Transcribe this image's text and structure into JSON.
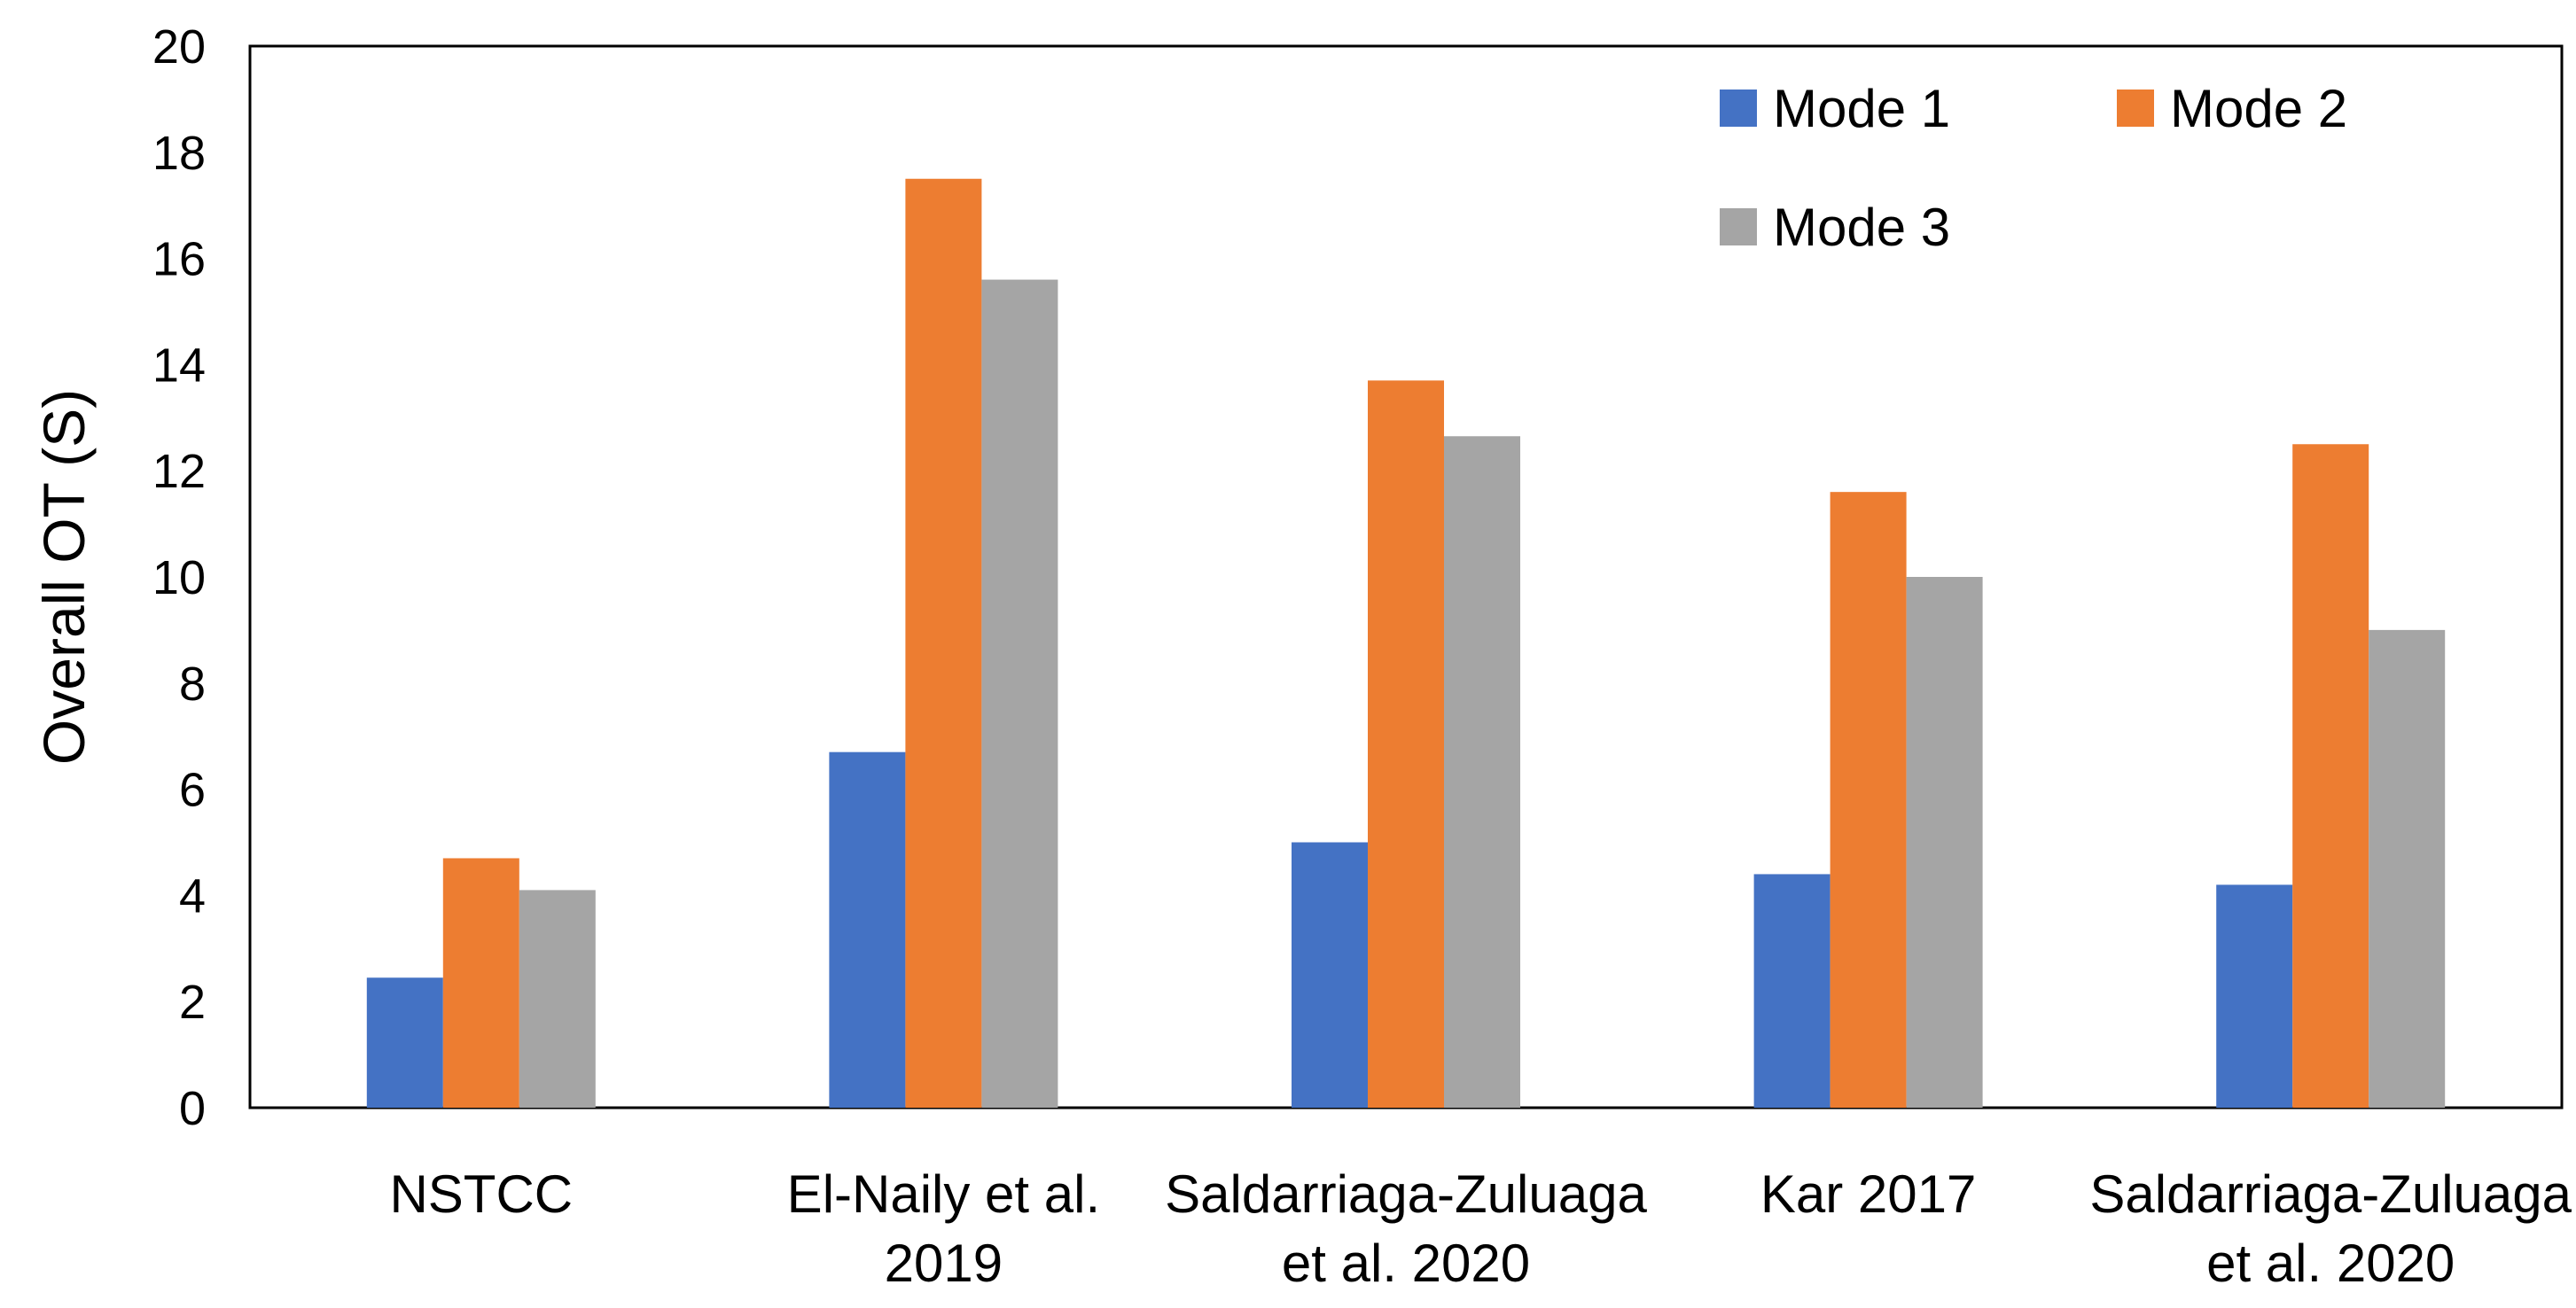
{
  "chart_data": {
    "type": "bar",
    "title": "",
    "xlabel": "",
    "ylabel": "Overall OT (S)",
    "ylim": [
      0,
      20
    ],
    "yticks": [
      "0",
      "2",
      "4",
      "6",
      "8",
      "10",
      "12",
      "14",
      "16",
      "18",
      "20"
    ],
    "grid": false,
    "legend_position": "top-right",
    "categories": [
      [
        "NSTCC"
      ],
      [
        "El-Naily et al.",
        "2019"
      ],
      [
        "Saldarriaga-Zuluaga",
        "et al. 2020"
      ],
      [
        "Kar 2017"
      ],
      [
        "Saldarriaga-Zuluaga",
        "et al. 2020"
      ]
    ],
    "series": [
      {
        "name": "Mode 1",
        "color": "#4472C4",
        "values": [
          2.45,
          6.7,
          5.0,
          4.4,
          4.2
        ]
      },
      {
        "name": "Mode 2",
        "color": "#ED7D31",
        "values": [
          4.7,
          17.5,
          13.7,
          11.6,
          12.5
        ]
      },
      {
        "name": "Mode 3",
        "color": "#A5A5A5",
        "values": [
          4.1,
          15.6,
          12.65,
          10.0,
          9.0
        ]
      }
    ]
  }
}
